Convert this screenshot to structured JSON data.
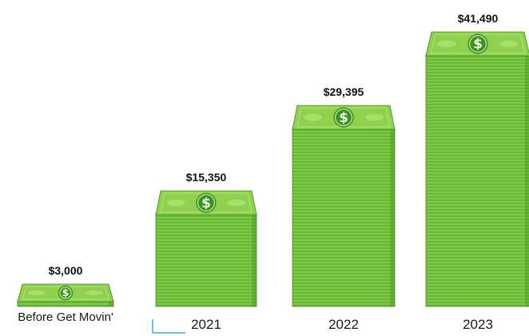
{
  "chart_data": {
    "type": "bar",
    "categories": [
      "Before Get Movin'",
      "2021",
      "2022",
      "2023"
    ],
    "values": [
      3000,
      15350,
      29395,
      41490
    ],
    "value_labels": [
      "$3,000",
      "$15,350",
      "$29,395",
      "$41,490"
    ],
    "title": "",
    "xlabel": "",
    "ylabel": "",
    "ylim": [
      0,
      41490
    ],
    "grid": false,
    "legend": "none",
    "bar_style": "stacks-of-dollar-bills",
    "colors": {
      "bill_face": "#8fd14f",
      "bill_side": "#5aa72c",
      "bill_side_dark": "#3f8a1e",
      "bill_band": "#a6e06a",
      "bill_seal": "#3e8f27",
      "stack_lines": "#79c341",
      "axis_tick": "#6cc6d8"
    }
  }
}
